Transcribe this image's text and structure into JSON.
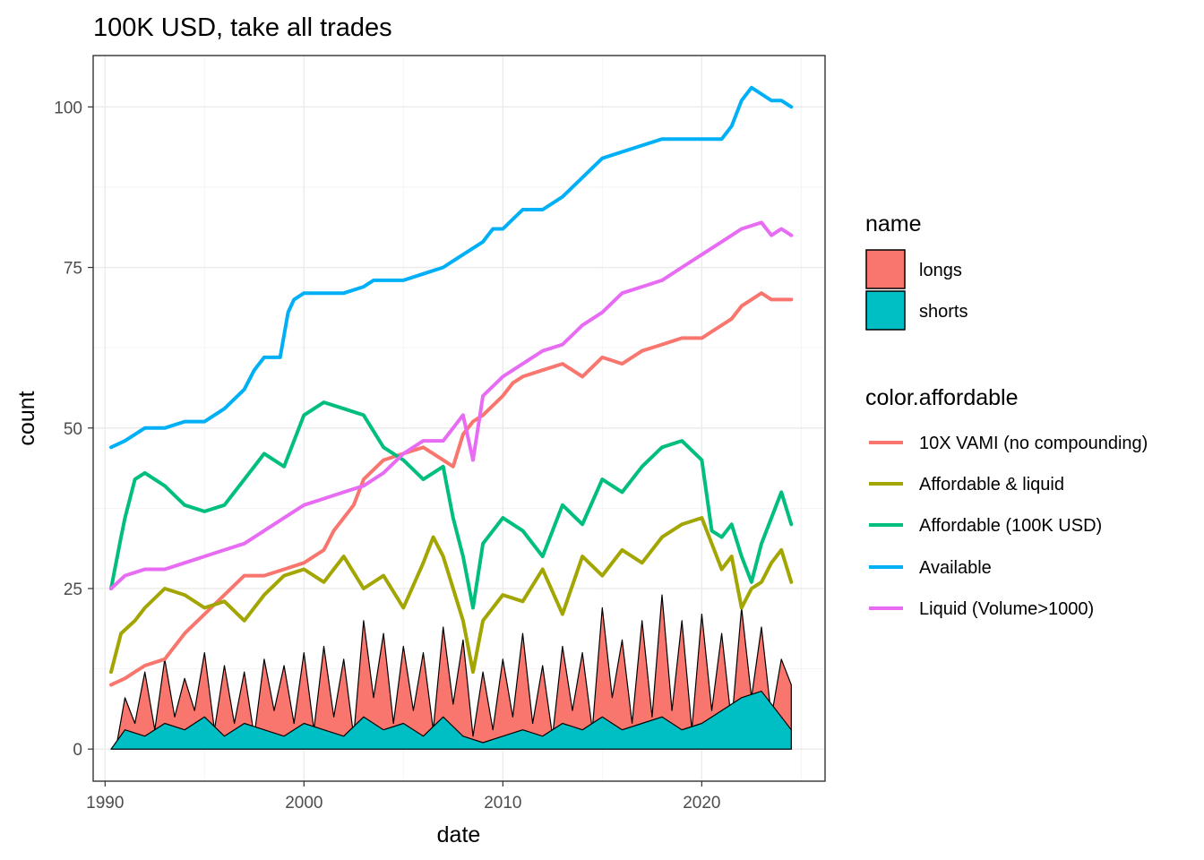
{
  "chart_data": {
    "type": "area",
    "title": "100K USD, take all trades",
    "xlabel": "date",
    "ylabel": "count",
    "xlim": [
      1989.4,
      2026.2
    ],
    "ylim": [
      -5,
      108
    ],
    "x_ticks": [
      1990,
      2000,
      2010,
      2020
    ],
    "x_tick_labels": [
      "1990",
      "2000",
      "2010",
      "2020"
    ],
    "y_ticks": [
      0,
      25,
      50,
      75,
      100
    ],
    "y_tick_labels": [
      "0",
      "25",
      "50",
      "75",
      "100"
    ],
    "grid": true,
    "legend_placement": "right",
    "fill_legend": {
      "title": "name",
      "entries": [
        {
          "label": "longs",
          "color": "#F8766D"
        },
        {
          "label": "shorts",
          "color": "#00BFC4"
        }
      ]
    },
    "line_legend": {
      "title": "color.affordable",
      "entries": [
        {
          "label": "10X VAMI (no compounding)",
          "color": "#F8766D"
        },
        {
          "label": "Affordable & liquid",
          "color": "#A3A500"
        },
        {
          "label": "Affordable (100K USD)",
          "color": "#00BF7D"
        },
        {
          "label": "Available",
          "color": "#00B0F6"
        },
        {
          "label": "Liquid (Volume>1000)",
          "color": "#E76BF3"
        }
      ]
    },
    "area_series": [
      {
        "name": "longs",
        "color": "#F8766D",
        "x": [
          1990.3,
          1990.6,
          1991.0,
          1991.5,
          1992.0,
          1992.5,
          1993.0,
          1993.5,
          1994.0,
          1994.5,
          1995.0,
          1995.5,
          1996.0,
          1996.5,
          1997.0,
          1997.5,
          1998.0,
          1998.5,
          1999.0,
          1999.5,
          2000.0,
          2000.5,
          2001.0,
          2001.5,
          2002.0,
          2002.5,
          2003.0,
          2003.5,
          2004.0,
          2004.5,
          2005.0,
          2005.5,
          2006.0,
          2006.5,
          2007.0,
          2007.5,
          2008.0,
          2008.5,
          2009.0,
          2009.5,
          2010.0,
          2010.5,
          2011.0,
          2011.5,
          2012.0,
          2012.5,
          2013.0,
          2013.5,
          2014.0,
          2014.5,
          2015.0,
          2015.5,
          2016.0,
          2016.5,
          2017.0,
          2017.5,
          2018.0,
          2018.5,
          2019.0,
          2019.5,
          2020.0,
          2020.5,
          2021.0,
          2021.5,
          2022.0,
          2022.5,
          2023.0,
          2023.5,
          2024.0,
          2024.5
        ],
        "y": [
          0,
          1,
          8,
          4,
          12,
          3,
          14,
          5,
          11,
          6,
          15,
          3,
          13,
          4,
          12,
          2,
          14,
          6,
          13,
          4,
          15,
          3,
          16,
          5,
          14,
          2,
          20,
          8,
          18,
          4,
          16,
          6,
          15,
          3,
          19,
          7,
          17,
          2,
          12,
          3,
          14,
          5,
          18,
          4,
          13,
          2,
          16,
          6,
          15,
          3,
          22,
          8,
          17,
          4,
          20,
          5,
          24,
          6,
          20,
          3,
          21,
          6,
          18,
          4,
          22,
          8,
          19,
          5,
          14,
          10
        ]
      },
      {
        "name": "shorts",
        "color": "#00BFC4",
        "x": [
          1990.3,
          1991.0,
          1992.0,
          1993.0,
          1994.0,
          1995.0,
          1996.0,
          1997.0,
          1998.0,
          1999.0,
          2000.0,
          2001.0,
          2002.0,
          2003.0,
          2004.0,
          2005.0,
          2006.0,
          2007.0,
          2008.0,
          2009.0,
          2010.0,
          2011.0,
          2012.0,
          2013.0,
          2014.0,
          2015.0,
          2016.0,
          2017.0,
          2018.0,
          2019.0,
          2020.0,
          2021.0,
          2022.0,
          2023.0,
          2024.0,
          2024.5
        ],
        "y": [
          0,
          3,
          2,
          4,
          3,
          5,
          2,
          4,
          3,
          2,
          4,
          3,
          2,
          5,
          3,
          4,
          2,
          5,
          2,
          1,
          2,
          3,
          2,
          4,
          3,
          5,
          3,
          4,
          5,
          3,
          4,
          6,
          8,
          9,
          5,
          3
        ]
      }
    ],
    "series": [
      {
        "name": "10X VAMI (no compounding)",
        "color": "#F8766D",
        "x": [
          1990.3,
          1991.0,
          1991.5,
          1992.0,
          1993.0,
          1994.0,
          1995.0,
          1996.0,
          1997.0,
          1998.0,
          1999.0,
          2000.0,
          2001.0,
          2001.5,
          2002.0,
          2002.5,
          2003.0,
          2004.0,
          2005.0,
          2006.0,
          2006.5,
          2007.0,
          2007.5,
          2008.0,
          2008.5,
          2009.0,
          2010.0,
          2010.5,
          2011.0,
          2012.0,
          2013.0,
          2014.0,
          2015.0,
          2016.0,
          2017.0,
          2018.0,
          2019.0,
          2020.0,
          2020.5,
          2021.0,
          2021.5,
          2022.0,
          2022.5,
          2023.0,
          2023.5,
          2024.0,
          2024.5
        ],
        "y": [
          10,
          11,
          12,
          13,
          14,
          18,
          21,
          24,
          27,
          27,
          28,
          29,
          31,
          34,
          36,
          38,
          42,
          45,
          46,
          47,
          46,
          45,
          44,
          49,
          51,
          52,
          55,
          57,
          58,
          59,
          60,
          58,
          61,
          60,
          62,
          63,
          64,
          64,
          65,
          66,
          67,
          69,
          70,
          71,
          70,
          70,
          70
        ]
      },
      {
        "name": "Affordable & liquid",
        "color": "#A3A500",
        "x": [
          1990.3,
          1990.8,
          1991.5,
          1992.0,
          1993.0,
          1994.0,
          1995.0,
          1996.0,
          1997.0,
          1998.0,
          1999.0,
          2000.0,
          2001.0,
          2002.0,
          2003.0,
          2004.0,
          2005.0,
          2006.0,
          2006.5,
          2007.0,
          2008.0,
          2008.5,
          2009.0,
          2010.0,
          2011.0,
          2012.0,
          2013.0,
          2014.0,
          2015.0,
          2016.0,
          2017.0,
          2018.0,
          2019.0,
          2020.0,
          2020.5,
          2021.0,
          2021.5,
          2022.0,
          2022.5,
          2023.0,
          2023.5,
          2024.0,
          2024.5
        ],
        "y": [
          12,
          18,
          20,
          22,
          25,
          24,
          22,
          23,
          20,
          24,
          27,
          28,
          26,
          30,
          25,
          27,
          22,
          29,
          33,
          30,
          20,
          12,
          20,
          24,
          23,
          28,
          21,
          30,
          27,
          31,
          29,
          33,
          35,
          36,
          32,
          28,
          30,
          22,
          25,
          26,
          29,
          31,
          26
        ]
      },
      {
        "name": "Affordable (100K USD)",
        "color": "#00BF7D",
        "x": [
          1990.3,
          1990.8,
          1991.0,
          1991.5,
          1992.0,
          1993.0,
          1994.0,
          1995.0,
          1996.0,
          1997.0,
          1998.0,
          1999.0,
          2000.0,
          2001.0,
          2002.0,
          2003.0,
          2004.0,
          2005.0,
          2006.0,
          2007.0,
          2007.5,
          2008.0,
          2008.5,
          2009.0,
          2010.0,
          2011.0,
          2012.0,
          2013.0,
          2014.0,
          2015.0,
          2016.0,
          2017.0,
          2018.0,
          2019.0,
          2020.0,
          2020.5,
          2021.0,
          2021.5,
          2022.0,
          2022.5,
          2023.0,
          2023.5,
          2024.0,
          2024.5
        ],
        "y": [
          25,
          33,
          36,
          42,
          43,
          41,
          38,
          37,
          38,
          42,
          46,
          44,
          52,
          54,
          53,
          52,
          47,
          45,
          42,
          44,
          36,
          30,
          22,
          32,
          36,
          34,
          30,
          38,
          35,
          42,
          40,
          44,
          47,
          48,
          45,
          34,
          33,
          35,
          30,
          26,
          32,
          36,
          40,
          35
        ]
      },
      {
        "name": "Available",
        "color": "#00B0F6",
        "x": [
          1990.3,
          1991.0,
          1991.5,
          1992.0,
          1993.0,
          1994.0,
          1995.0,
          1996.0,
          1997.0,
          1997.5,
          1998.0,
          1998.8,
          1999.2,
          1999.5,
          2000.0,
          2001.0,
          2002.0,
          2003.0,
          2003.5,
          2004.0,
          2005.0,
          2006.0,
          2007.0,
          2008.0,
          2009.0,
          2009.5,
          2010.0,
          2011.0,
          2012.0,
          2013.0,
          2014.0,
          2015.0,
          2016.0,
          2017.0,
          2018.0,
          2019.0,
          2020.0,
          2021.0,
          2021.5,
          2022.0,
          2022.5,
          2023.0,
          2023.5,
          2024.0,
          2024.5
        ],
        "y": [
          47,
          48,
          49,
          50,
          50,
          51,
          51,
          53,
          56,
          59,
          61,
          61,
          68,
          70,
          71,
          71,
          71,
          72,
          73,
          73,
          73,
          74,
          75,
          77,
          79,
          81,
          81,
          84,
          84,
          86,
          89,
          92,
          93,
          94,
          95,
          95,
          95,
          95,
          97,
          101,
          103,
          102,
          101,
          101,
          100
        ]
      },
      {
        "name": "Liquid (Volume>1000)",
        "color": "#E76BF3",
        "x": [
          1990.3,
          1991.0,
          1992.0,
          1993.0,
          1994.0,
          1995.0,
          1996.0,
          1997.0,
          1998.0,
          1999.0,
          2000.0,
          2001.0,
          2002.0,
          2003.0,
          2004.0,
          2005.0,
          2006.0,
          2007.0,
          2008.0,
          2008.5,
          2009.0,
          2010.0,
          2011.0,
          2012.0,
          2013.0,
          2014.0,
          2015.0,
          2016.0,
          2017.0,
          2018.0,
          2019.0,
          2020.0,
          2021.0,
          2022.0,
          2023.0,
          2023.5,
          2024.0,
          2024.5
        ],
        "y": [
          25,
          27,
          28,
          28,
          29,
          30,
          31,
          32,
          34,
          36,
          38,
          39,
          40,
          41,
          43,
          46,
          48,
          48,
          52,
          45,
          55,
          58,
          60,
          62,
          63,
          66,
          68,
          71,
          72,
          73,
          75,
          77,
          79,
          81,
          82,
          80,
          81,
          80
        ]
      }
    ]
  }
}
